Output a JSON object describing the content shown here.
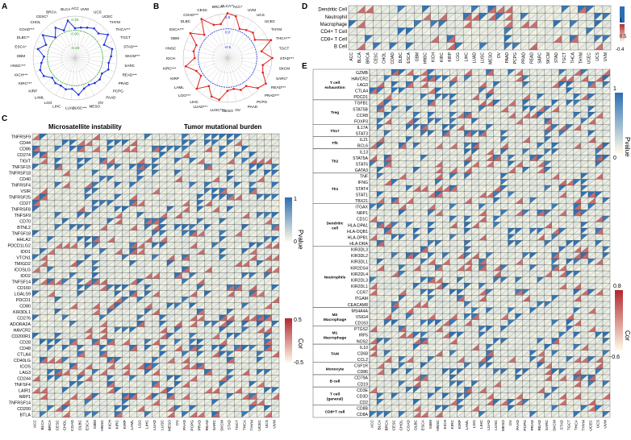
{
  "panels": {
    "A": "A",
    "B": "B",
    "C": "C",
    "D": "D",
    "E": "E"
  },
  "cancers": [
    "ACC",
    "BLCA",
    "BRCA",
    "CESC",
    "CHOL",
    "COAD",
    "DLBC",
    "ESCA",
    "GBM",
    "HNSC",
    "KICH",
    "KIRC",
    "KIRP",
    "LAML",
    "LGG",
    "LIHC",
    "LUAD",
    "LUSC",
    "MESO",
    "OV",
    "PAAD",
    "PCPG",
    "PRAD",
    "READ",
    "SARC",
    "SKCM",
    "STAD",
    "TGCT",
    "THCA",
    "THYM",
    "UCEC",
    "UCS",
    "UVM"
  ],
  "radar_a": {
    "labels": [
      "ACC",
      "UVM",
      "UCS",
      "UCEC",
      "THYM",
      "THCA***",
      "TGCT",
      "STAD***",
      "SKCM***",
      "SARC",
      "READ***",
      "PRAD",
      "PCPG",
      "PAAD",
      "OV",
      "MESO",
      "LUSC***",
      "LUAD",
      "LIHC",
      "LGG",
      "LAML",
      "KIRP",
      "KIRC***",
      "KICH***",
      "HNSC***",
      "GBM",
      "ESCA*",
      "DLBC**",
      "COAD***",
      "CHOL",
      "CESC*",
      "BRCA",
      "BLCA"
    ],
    "ticks": [
      "0.25",
      "0.00",
      "-0.25"
    ],
    "values": [
      0.05,
      0.08,
      0.12,
      0.18,
      0.15,
      0.3,
      0.1,
      0.25,
      0.2,
      0.15,
      0.18,
      0.08,
      0.12,
      0.1,
      0.06,
      0.1,
      0.22,
      0.08,
      0.12,
      0.08,
      0.1,
      0.06,
      0.2,
      0.22,
      0.15,
      0.08,
      0.25,
      0.1,
      0.28,
      0.02,
      0.2,
      0.05,
      0.25
    ]
  },
  "radar_b": {
    "labels": [
      "BLCA**",
      "ACC*",
      "UVM",
      "UCS",
      "UCEC",
      "THYM",
      "THCA***",
      "TGCT",
      "STAD***",
      "SKCM",
      "SARC*",
      "READ***",
      "PRAD***",
      "PCPG",
      "PAAD",
      "OV",
      "MESO",
      "LUSC***",
      "LUAD***",
      "LIHC",
      "LGG***",
      "LAML",
      "KIRP",
      "KIRC***",
      "KICH",
      "HNSC",
      "GBM",
      "ESCA***",
      "DLBC",
      "COAD***",
      "CESC",
      "BRCA"
    ],
    "ticks": [
      "0.5",
      "0.0",
      "-0.5"
    ],
    "values": [
      0.35,
      0.3,
      0.05,
      0.1,
      0.15,
      0.08,
      0.4,
      0.12,
      0.35,
      0.15,
      0.2,
      0.38,
      0.3,
      0.1,
      0.12,
      0.05,
      0.08,
      0.3,
      0.28,
      0.1,
      0.32,
      0.06,
      0.1,
      0.3,
      0.08,
      0.12,
      0.1,
      0.35,
      0.08,
      0.4,
      0.15,
      0.12
    ]
  },
  "panel_c": {
    "title_left": "Microsatellite instability",
    "title_right": "Tumor mutational burden",
    "genes": [
      "TNFRSF9",
      "CD44",
      "CD86",
      "CD274",
      "TIGIT",
      "TNFSF15",
      "TNFRSF18",
      "CD40",
      "TNFRSF4",
      "VSIR",
      "TNFRSF25",
      "CD27",
      "TNFRSF8",
      "TNFSF9",
      "CD70",
      "BTNL2",
      "TNFSF18",
      "HHLA2",
      "PDCD1LG2",
      "IDO1",
      "VTCN1",
      "TMIGD2",
      "ICOSLG",
      "IDO2",
      "TNFSF14",
      "CD160",
      "LGALS9",
      "PDCD1",
      "CD80",
      "KIR3DL1",
      "CD276",
      "ADORA2A",
      "HAVCR2",
      "CD200R1",
      "CD28",
      "CD48",
      "CTLA4",
      "CD40LG",
      "ICOS",
      "LAG3",
      "CD244",
      "TNFSF4",
      "LAIR1",
      "NRP1",
      "TNFRSF14",
      "CD200",
      "BTLA"
    ],
    "pvalue_legend": {
      "title": "Pvalue",
      "max": "1",
      "min": "0"
    },
    "cor_legend": {
      "title": "Cor",
      "max": "0.5",
      "min": "-0.5"
    }
  },
  "panel_d": {
    "cells": [
      "Dendritic Cell",
      "Neutrophil",
      "Macrophage",
      "CD4+ T Cell",
      "CD8+ T Cell",
      "B Cell"
    ],
    "cancers": [
      "ACC",
      "BLCA",
      "BRCA",
      "CESC",
      "CHOL",
      "COAD",
      "DLBC",
      "ESCA",
      "GBM",
      "HNSC",
      "KICH",
      "KIRC",
      "KIRP",
      "LGG",
      "LIHC",
      "LUAD",
      "LUSC",
      "MESO",
      "OV",
      "PAAD",
      "PCPG",
      "PRAD",
      "READ",
      "SARC",
      "SKCM",
      "STAD",
      "TGCT",
      "THCA",
      "THYM",
      "UCEC",
      "UCS",
      "UVM"
    ],
    "legend_max": "1",
    "legend_mid": "0.5",
    "legend_min": "-0.4"
  },
  "panel_e": {
    "groups": [
      {
        "name": "T cell exhaustion",
        "genes": [
          "GZMB",
          "HAVCR2",
          "LAG3",
          "CTLA4",
          "PDCD1"
        ]
      },
      {
        "name": "Treg",
        "genes": [
          "TGFB1",
          "STAT5B",
          "CCR8",
          "FOXP3"
        ]
      },
      {
        "name": "Th17",
        "genes": [
          "IL17A",
          "STAT3"
        ]
      },
      {
        "name": "Tfh",
        "genes": [
          "IL21",
          "BCL6"
        ]
      },
      {
        "name": "Th2",
        "genes": [
          "IL13",
          "STAT5A",
          "STAT6",
          "GATA3"
        ]
      },
      {
        "name": "Th1",
        "genes": [
          "TNF",
          "IFNG",
          "STAT4",
          "STAT1",
          "TBX21"
        ]
      },
      {
        "name": "Dendritic cell",
        "genes": [
          "ITGAX",
          "NRP1",
          "CD1C",
          "HLA-DPA1",
          "HLA-DQB1",
          "HLA-DPB1",
          "HLA-DRA"
        ]
      },
      {
        "name": "Neutrophils",
        "genes": [
          "KIR3DL3",
          "KIR3DL2",
          "KIR3DL1",
          "KIR2DS4",
          "KIR2DL4",
          "KIR2DL3",
          "KIR2DL1",
          "CCR7",
          "ITGAM",
          "CEACAM8"
        ]
      },
      {
        "name": "M2 Macrophage",
        "genes": [
          "MS4A4A",
          "VSIG4",
          "CD163"
        ]
      },
      {
        "name": "M1 Macrophage",
        "genes": [
          "PTGS2",
          "IRF5",
          "NOS2"
        ]
      },
      {
        "name": "TAM",
        "genes": [
          "IL10",
          "CD68",
          "CCL2"
        ]
      },
      {
        "name": "Monocyte",
        "genes": [
          "CSF1R",
          "CD86"
        ]
      },
      {
        "name": "B cell",
        "genes": [
          "CD79A",
          "CD19"
        ]
      },
      {
        "name": "T cell (general)",
        "genes": [
          "CD3E",
          "CD3D",
          "CD2"
        ]
      },
      {
        "name": "CD8+T cell",
        "genes": [
          "CD8B",
          "CD8A"
        ]
      }
    ],
    "pvalue_legend": {
      "title": "Pvalue",
      "max": "1",
      "min": "0"
    },
    "cor_legend": {
      "title": "Cor",
      "max": "0.8",
      "min": "-0.6"
    }
  },
  "colors": {
    "blue": "#2b6fb3",
    "red": "#b2282f",
    "grid": "#333333",
    "radar_a": "#1f2fd6",
    "radar_b": "#e0201c",
    "ring": "#2ca02c"
  }
}
